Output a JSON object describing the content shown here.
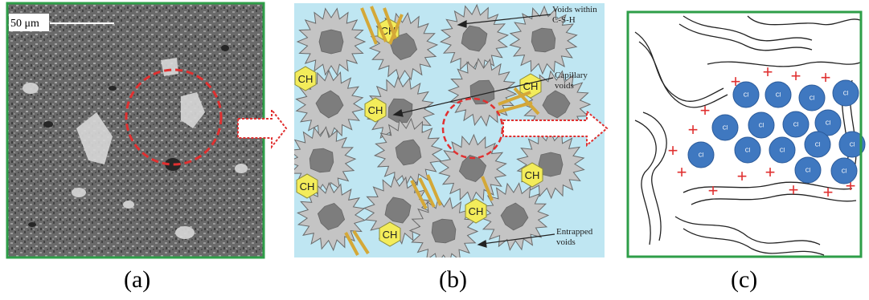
{
  "panel_a": {
    "scale_bar_label": "50 μm",
    "caption": "(a)"
  },
  "panel_b": {
    "caption": "(b)",
    "ch_label": "CH",
    "annotations": [
      {
        "lines": [
          "Voids within",
          "C-S-H"
        ]
      },
      {
        "lines": [
          "Capillary",
          "voids"
        ]
      },
      {
        "lines": [
          "Entrapped",
          "voids"
        ]
      }
    ]
  },
  "panel_c": {
    "caption": "(c)",
    "ion_label": "Cl",
    "charge_symbol": "+"
  },
  "colors": {
    "frame_green": "#2e9e48",
    "highlight_red": "#e03030",
    "pore_water": "#bfe6f2",
    "ch_yellow": "#f3ec5a",
    "cl_blue": "#3f78c0",
    "grain_gray": "#bdbdbd"
  }
}
